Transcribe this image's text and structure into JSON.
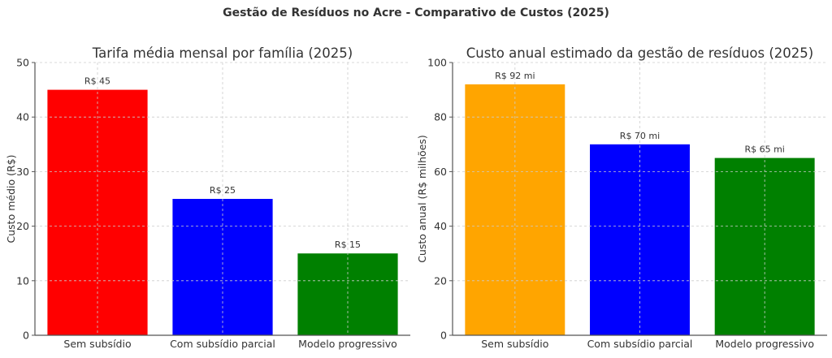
{
  "suptitle": "Gestão de Resíduos no Acre - Comparativo de Custos (2025)",
  "chart_data": [
    {
      "type": "bar",
      "title": "Tarifa média mensal por família (2025)",
      "xlabel": "",
      "ylabel": "Custo médio (R$)",
      "categories": [
        "Sem subsídio",
        "Com subsídio parcial",
        "Modelo progressivo"
      ],
      "values": [
        45,
        25,
        15
      ],
      "data_labels": [
        "R$ 45",
        "R$ 25",
        "R$ 15"
      ],
      "colors": [
        "#ff0000",
        "#0000ff",
        "#008000"
      ],
      "ylim": [
        0,
        50
      ],
      "yticks": [
        0,
        10,
        20,
        30,
        40,
        50
      ],
      "grid": true
    },
    {
      "type": "bar",
      "title": "Custo anual estimado da gestão de resíduos (2025)",
      "xlabel": "",
      "ylabel": "Custo anual (R$ milhões)",
      "categories": [
        "Sem subsídio",
        "Com subsídio parcial",
        "Modelo progressivo"
      ],
      "values": [
        92,
        70,
        65
      ],
      "data_labels": [
        "R$ 92 mi",
        "R$ 70 mi",
        "R$ 65 mi"
      ],
      "colors": [
        "#ffa500",
        "#0000ff",
        "#008000"
      ],
      "ylim": [
        0,
        100
      ],
      "yticks": [
        0,
        20,
        40,
        60,
        80,
        100
      ],
      "grid": true
    }
  ]
}
